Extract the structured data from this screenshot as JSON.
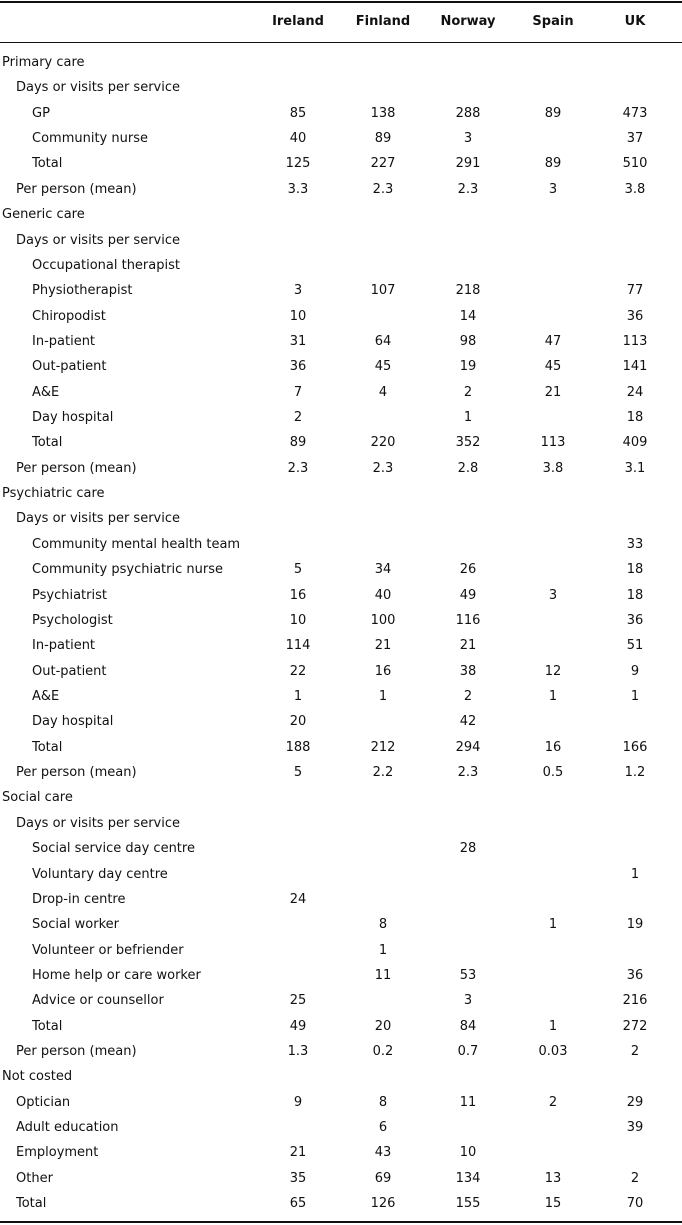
{
  "table": {
    "columns": [
      "Ireland",
      "Finland",
      "Norway",
      "Spain",
      "UK"
    ],
    "sections": [
      {
        "title": "Primary care",
        "subheading": "Days or visits per service",
        "rows": [
          {
            "label": "GP",
            "values": [
              "85",
              "138",
              "288",
              "89",
              "473"
            ]
          },
          {
            "label": "Community nurse",
            "values": [
              "40",
              "89",
              "3",
              null,
              "37"
            ]
          },
          {
            "label": "Total",
            "values": [
              "125",
              "227",
              "291",
              "89",
              "510"
            ]
          }
        ],
        "per_person": {
          "label": "Per person (mean)",
          "values": [
            "3.3",
            "2.3",
            "2.3",
            "3",
            "3.8"
          ]
        }
      },
      {
        "title": "Generic care",
        "subheading": "Days or visits per service",
        "rows": [
          {
            "label": "Occupational therapist",
            "values": [
              null,
              null,
              null,
              null,
              null
            ]
          },
          {
            "label": "Physiotherapist",
            "values": [
              "3",
              "107",
              "218",
              null,
              "77"
            ]
          },
          {
            "label": "Chiropodist",
            "values": [
              "10",
              null,
              "14",
              null,
              "36"
            ]
          },
          {
            "label": "In-patient",
            "values": [
              "31",
              "64",
              "98",
              "47",
              "113"
            ]
          },
          {
            "label": "Out-patient",
            "values": [
              "36",
              "45",
              "19",
              "45",
              "141"
            ]
          },
          {
            "label": "A&E",
            "values": [
              "7",
              "4",
              "2",
              "21",
              "24"
            ]
          },
          {
            "label": "Day hospital",
            "values": [
              "2",
              null,
              "1",
              null,
              "18"
            ]
          },
          {
            "label": "Total",
            "values": [
              "89",
              "220",
              "352",
              "113",
              "409"
            ]
          }
        ],
        "per_person": {
          "label": "Per person (mean)",
          "values": [
            "2.3",
            "2.3",
            "2.8",
            "3.8",
            "3.1"
          ]
        }
      },
      {
        "title": "Psychiatric care",
        "subheading": "Days or visits per service",
        "rows": [
          {
            "label": "Community mental health team",
            "values": [
              null,
              null,
              null,
              null,
              "33"
            ]
          },
          {
            "label": "Community psychiatric nurse",
            "values": [
              "5",
              "34",
              "26",
              null,
              "18"
            ]
          },
          {
            "label": "Psychiatrist",
            "values": [
              "16",
              "40",
              "49",
              "3",
              "18"
            ]
          },
          {
            "label": "Psychologist",
            "values": [
              "10",
              "100",
              "116",
              null,
              "36"
            ]
          },
          {
            "label": "In-patient",
            "values": [
              "114",
              "21",
              "21",
              null,
              "51"
            ]
          },
          {
            "label": "Out-patient",
            "values": [
              "22",
              "16",
              "38",
              "12",
              "9"
            ]
          },
          {
            "label": "A&E",
            "values": [
              "1",
              "1",
              "2",
              "1",
              "1"
            ]
          },
          {
            "label": "Day hospital",
            "values": [
              "20",
              null,
              "42",
              null,
              null
            ]
          },
          {
            "label": "Total",
            "values": [
              "188",
              "212",
              "294",
              "16",
              "166"
            ]
          }
        ],
        "per_person": {
          "label": "Per person (mean)",
          "values": [
            "5",
            "2.2",
            "2.3",
            "0.5",
            "1.2"
          ]
        }
      },
      {
        "title": "Social care",
        "subheading": "Days or visits per service",
        "rows": [
          {
            "label": "Social service day centre",
            "values": [
              null,
              null,
              "28",
              null,
              null
            ]
          },
          {
            "label": "Voluntary day centre",
            "values": [
              null,
              null,
              null,
              null,
              "1"
            ]
          },
          {
            "label": "Drop-in centre",
            "values": [
              "24",
              null,
              null,
              null,
              null
            ]
          },
          {
            "label": "Social worker",
            "values": [
              null,
              "8",
              null,
              "1",
              "19"
            ]
          },
          {
            "label": "Volunteer or befriender",
            "values": [
              null,
              "1",
              null,
              null,
              null
            ]
          },
          {
            "label": "Home help or care worker",
            "values": [
              null,
              "11",
              "53",
              null,
              "36"
            ]
          },
          {
            "label": "Advice or counsellor",
            "values": [
              "25",
              null,
              "3",
              null,
              "216"
            ]
          },
          {
            "label": "Total",
            "values": [
              "49",
              "20",
              "84",
              "1",
              "272"
            ]
          }
        ],
        "per_person": {
          "label": "Per person (mean)",
          "values": [
            "1.3",
            "0.2",
            "0.7",
            "0.03",
            "2"
          ]
        }
      },
      {
        "title": "Not costed",
        "rows": [
          {
            "label": "Optician",
            "values": [
              "9",
              "8",
              "11",
              "2",
              "29"
            ]
          },
          {
            "label": "Adult education",
            "values": [
              null,
              "6",
              null,
              null,
              "39"
            ]
          },
          {
            "label": "Employment",
            "values": [
              "21",
              "43",
              "10",
              null,
              null
            ]
          },
          {
            "label": "Other",
            "values": [
              "35",
              "69",
              "134",
              "13",
              "2"
            ]
          },
          {
            "label": "Total",
            "values": [
              "65",
              "126",
              "155",
              "15",
              "70"
            ]
          }
        ]
      }
    ]
  }
}
